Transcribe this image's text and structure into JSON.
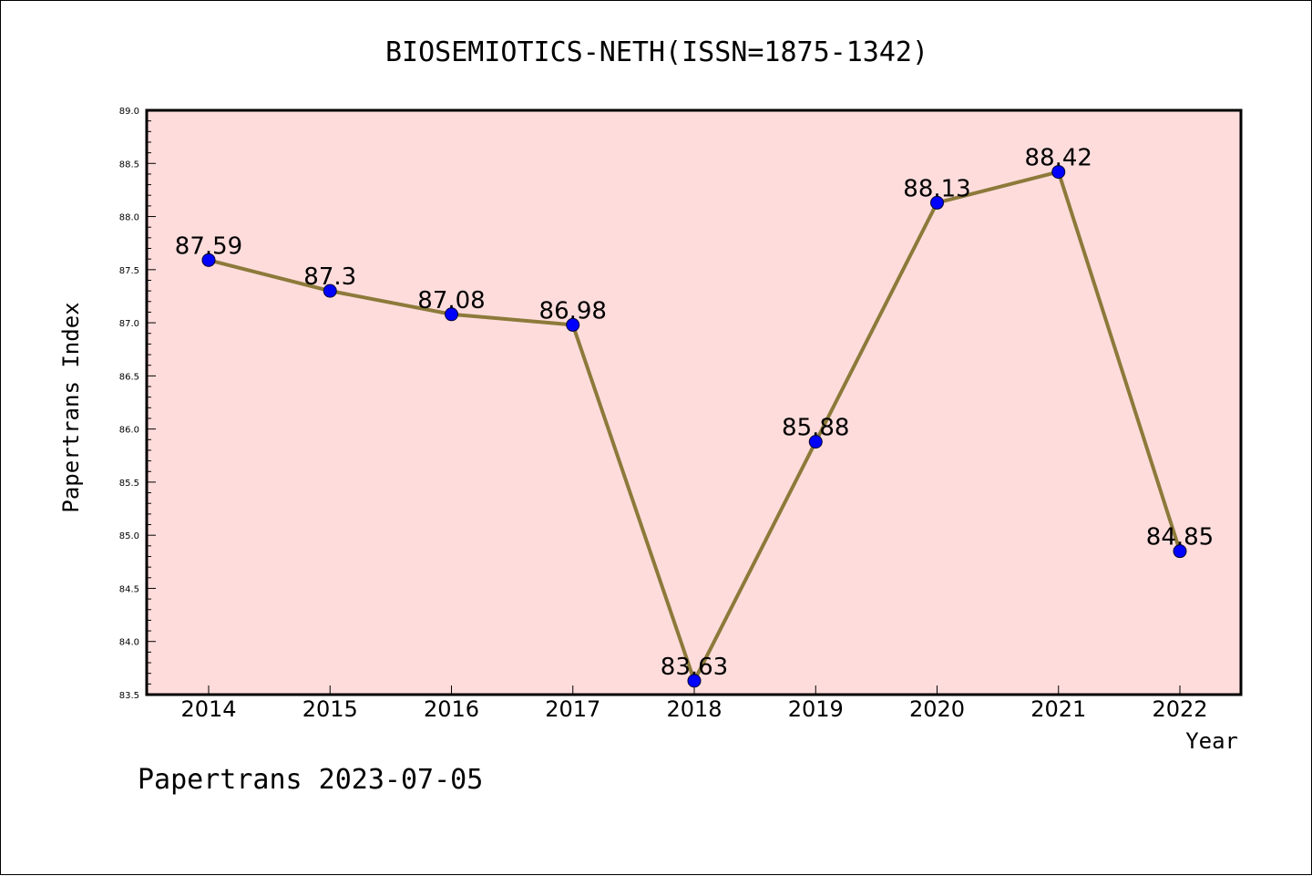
{
  "chart_data": {
    "type": "line",
    "title": "BIOSEMIOTICS-NETH(ISSN=1875-1342)",
    "xlabel": "Year",
    "ylabel": "Papertrans Index",
    "categories": [
      "2014",
      "2015",
      "2016",
      "2017",
      "2018",
      "2019",
      "2020",
      "2021",
      "2022"
    ],
    "values": [
      87.59,
      87.3,
      87.08,
      86.98,
      83.63,
      85.88,
      88.13,
      88.42,
      84.85
    ],
    "data_labels": [
      "87.59",
      "87.3",
      "87.08",
      "86.98",
      "83.63",
      "85.88",
      "88.13",
      "88.42",
      "84.85"
    ],
    "ylim": [
      83.5,
      89.0
    ],
    "yticks": [
      "83.5",
      "84.0",
      "84.5",
      "85.0",
      "85.5",
      "86.0",
      "86.5",
      "87.0",
      "87.5",
      "88.0",
      "88.5",
      "89.0"
    ],
    "grid": false,
    "line_color": "#8c7a3a",
    "marker_color": "#0000ff",
    "plot_background": "#ffdcdc"
  },
  "footer": "Papertrans 2023-07-05"
}
